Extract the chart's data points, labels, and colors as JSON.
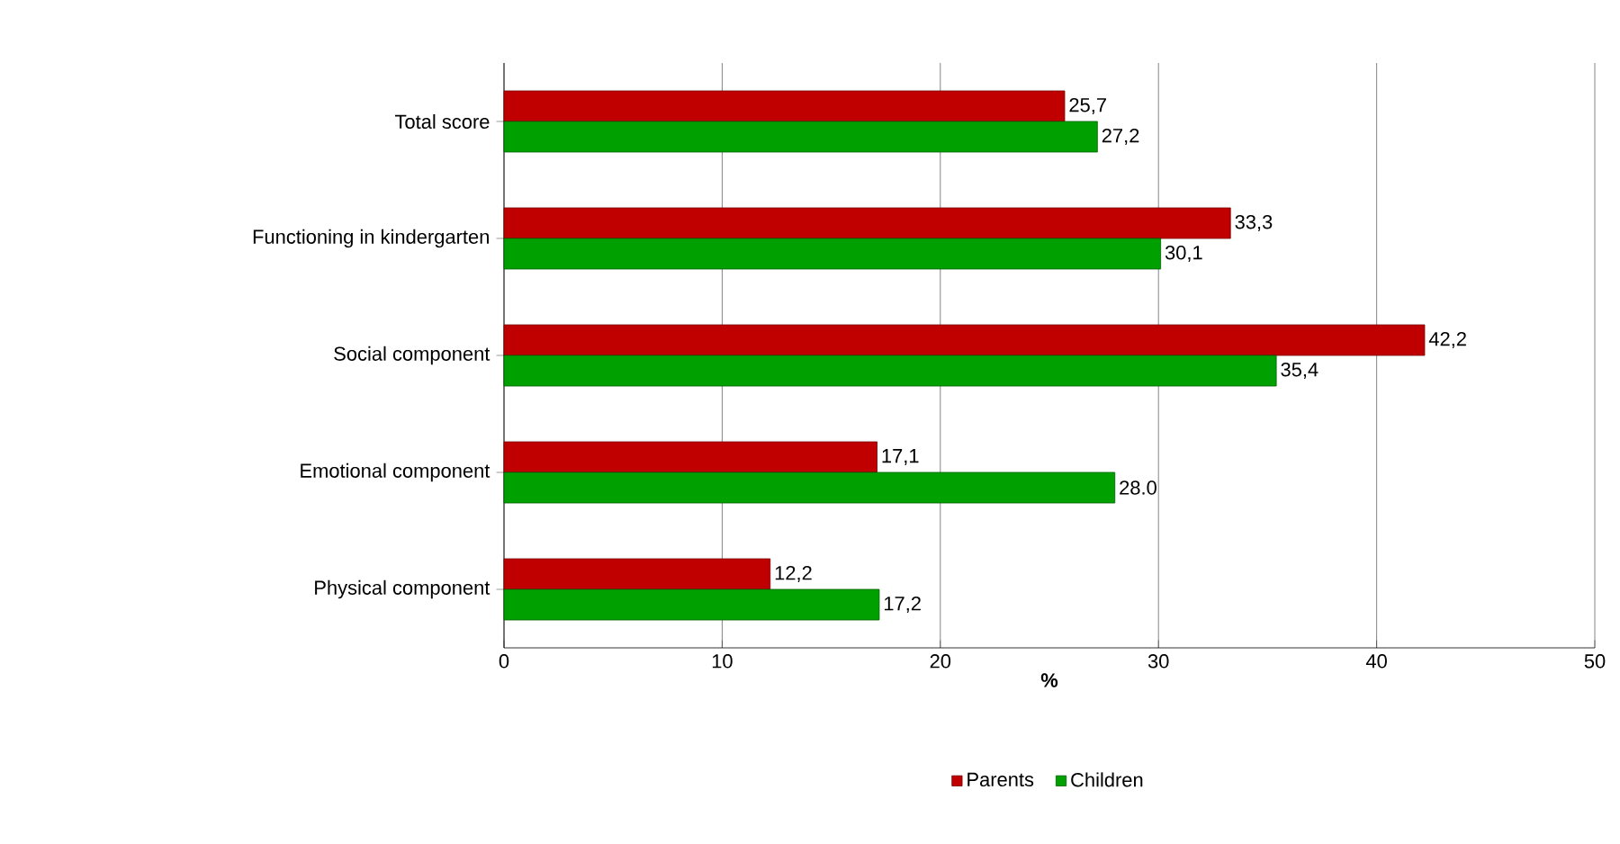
{
  "chart_data": {
    "type": "bar",
    "orientation": "horizontal",
    "xlabel": "%",
    "categories": [
      "Total score",
      "Functioning in kindergarten",
      "Social component",
      "Emotional component",
      "Physical component"
    ],
    "series": [
      {
        "name": "Parents",
        "color": "#c00000",
        "values": [
          25.7,
          33.3,
          42.2,
          17.1,
          12.2
        ],
        "value_labels": [
          "25,7",
          "33,3",
          "42,2",
          "17,1",
          "12,2"
        ]
      },
      {
        "name": "Children",
        "color": "#00a000",
        "values": [
          27.2,
          30.1,
          35.4,
          28.0,
          17.2
        ],
        "value_labels": [
          "27,2",
          "30,1",
          "35,4",
          "28.0",
          "17,2"
        ]
      }
    ],
    "xlim": [
      0,
      50
    ],
    "xticks": [
      0,
      10,
      20,
      30,
      40,
      50
    ],
    "grid": "x",
    "legend": "bottom"
  }
}
